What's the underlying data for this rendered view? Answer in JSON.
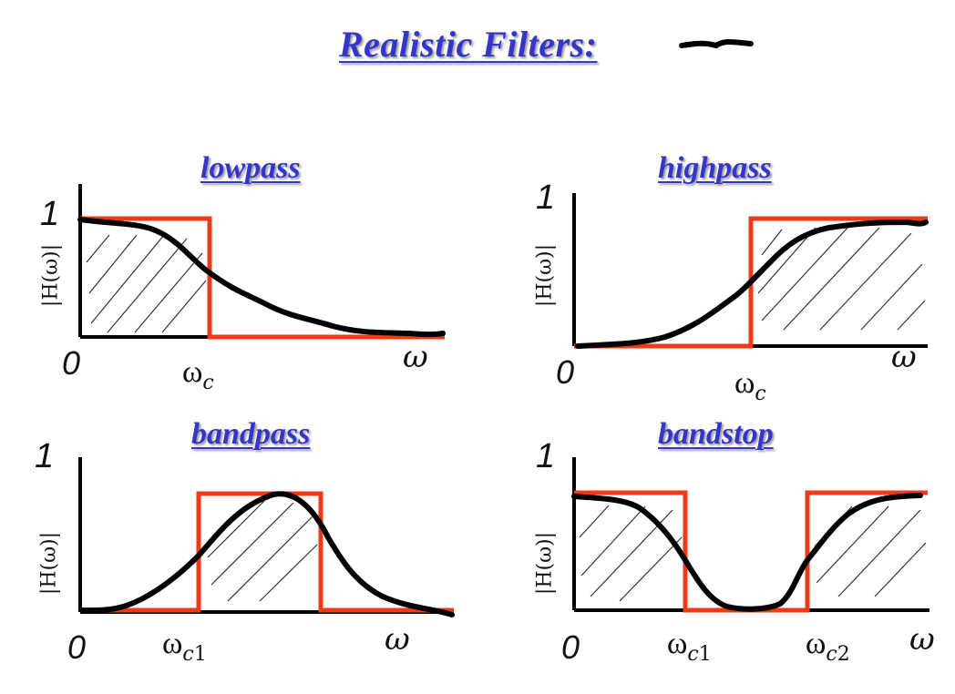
{
  "title": "Realistic  Filters:",
  "panels": [
    {
      "title": "lowpass",
      "y_label": "|H(ω)|",
      "one": "1",
      "zero": "0",
      "omega": "ω",
      "cutoffs": [
        {
          "main": "ω",
          "sub": "c",
          "num": ""
        }
      ]
    },
    {
      "title": "highpass",
      "y_label": "|H(ω)|",
      "one": "1",
      "zero": "0",
      "omega": "ω",
      "cutoffs": [
        {
          "main": "ω",
          "sub": "c",
          "num": ""
        }
      ]
    },
    {
      "title": "bandpass",
      "y_label": "|H(ω)|",
      "one": "1",
      "zero": "0",
      "omega": "ω",
      "cutoffs": [
        {
          "main": "ω",
          "sub": "c",
          "num": "1"
        }
      ]
    },
    {
      "title": "bandstop",
      "y_label": "|H(ω)|",
      "one": "1",
      "zero": "0",
      "omega": "ω",
      "cutoffs": [
        {
          "main": "ω",
          "sub": "c",
          "num": "1"
        },
        {
          "main": "ω",
          "sub": "c",
          "num": "2"
        }
      ]
    }
  ],
  "colors": {
    "ideal": "#f03a17",
    "realistic": "#000000",
    "title": "#3535c8",
    "hatch": "#333333"
  }
}
